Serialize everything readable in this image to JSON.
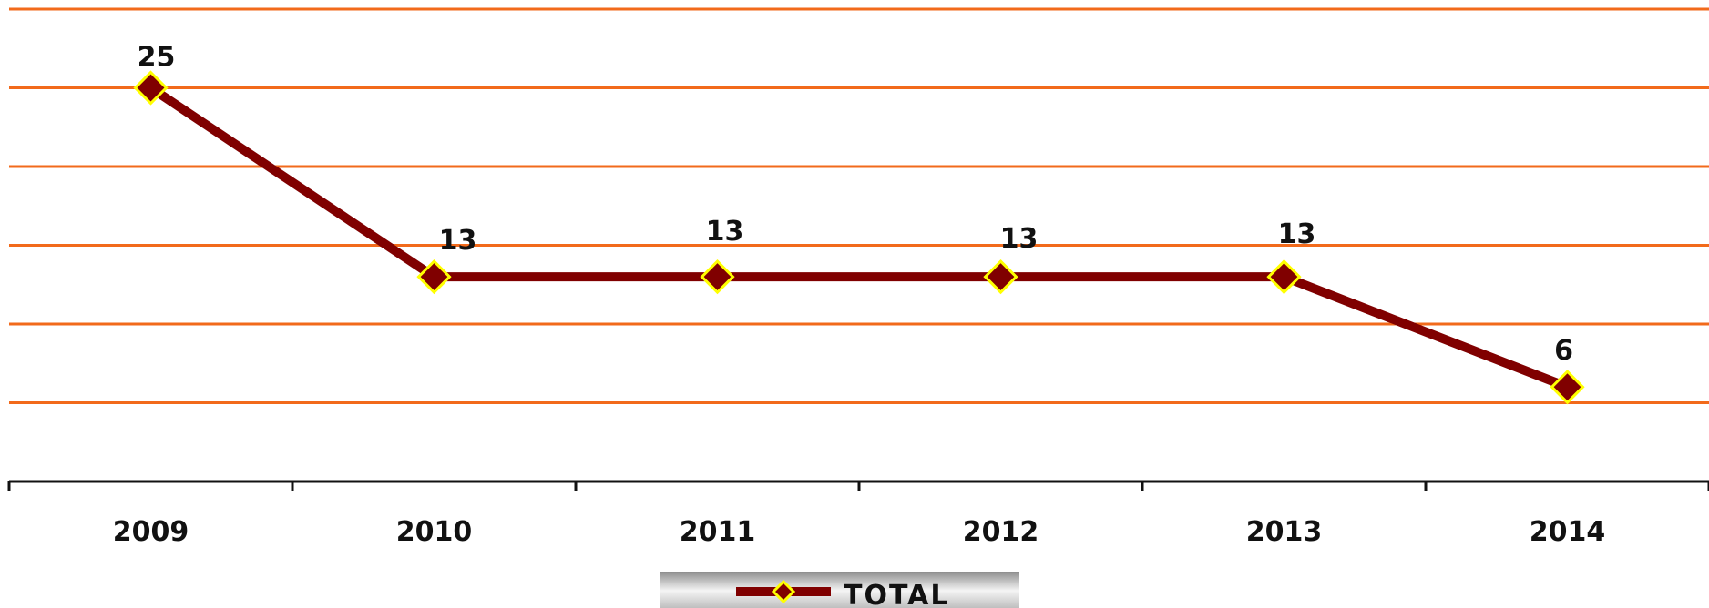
{
  "chart_data": {
    "type": "line",
    "categories": [
      "2009",
      "2010",
      "2011",
      "2012",
      "2013",
      "2014"
    ],
    "series": [
      {
        "name": "TOTAL",
        "values": [
          25,
          13,
          13,
          13,
          13,
          6
        ]
      }
    ],
    "data_labels": [
      "25",
      "13",
      "13",
      "13",
      "13",
      "6"
    ],
    "ylim": [
      0,
      30
    ],
    "grid": true,
    "legend": "bottom-center",
    "colors": {
      "line": "#800000",
      "marker_fill": "#800000",
      "marker_stroke": "#ffff00",
      "gridline": "#f26a1b",
      "axis": "#111111"
    }
  }
}
